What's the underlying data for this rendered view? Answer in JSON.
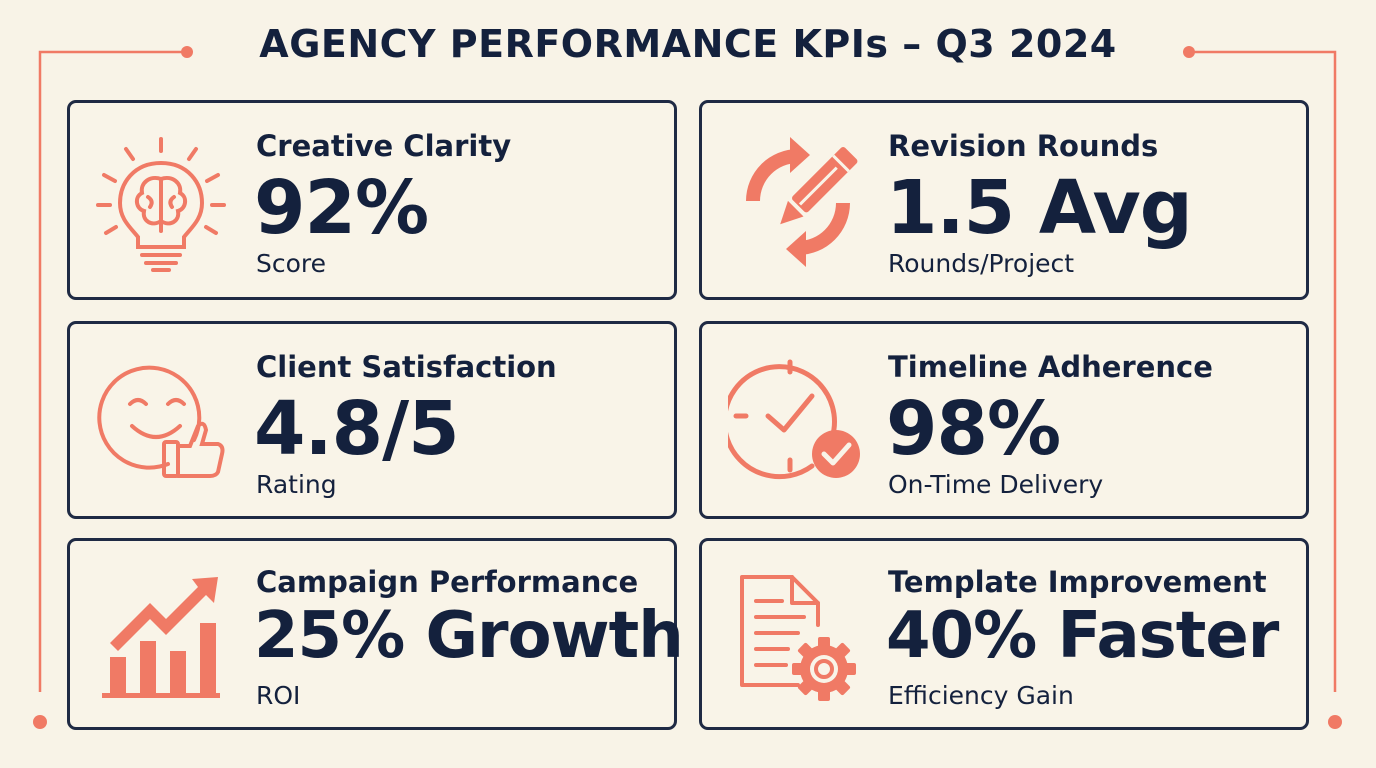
{
  "header": {
    "title": "AGENCY PERFORMANCE KPIs – Q3 2024"
  },
  "colors": {
    "accent": "#f07a65",
    "text": "#14213d",
    "background": "#f8f3e7"
  },
  "kpis": [
    {
      "label": "Creative Clarity",
      "value": "92%",
      "sub": "Score",
      "icon": "lightbulb-brain-icon"
    },
    {
      "label": "Revision Rounds",
      "value": "1.5 Avg",
      "sub": "Rounds/Project",
      "icon": "cycle-pencil-icon"
    },
    {
      "label": "Client Satisfaction",
      "value": "4.8/5",
      "sub": "Rating",
      "icon": "smiley-thumbs-up-icon"
    },
    {
      "label": "Timeline Adherence",
      "value": "98%",
      "sub": "On-Time Delivery",
      "icon": "clock-check-icon"
    },
    {
      "label": "Campaign Performance",
      "value": "25% Growth",
      "sub": "ROI",
      "icon": "growth-chart-icon"
    },
    {
      "label": "Template Improvement",
      "value": "40% Faster",
      "sub": "Efficiency Gain",
      "icon": "document-gear-icon"
    }
  ]
}
